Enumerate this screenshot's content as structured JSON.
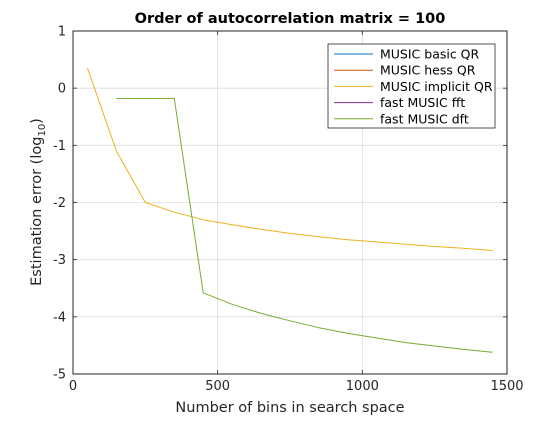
{
  "chart_data": {
    "type": "line",
    "title": "Order of autocorrelation matrix = 100",
    "xlabel": "Number of bins in search space",
    "ylabel_main": "Estimation error (log",
    "ylabel_sub": "10",
    "ylabel_tail": ")",
    "xlim": [
      0,
      1500
    ],
    "ylim": [
      -5,
      1
    ],
    "xticks": [
      0,
      500,
      1000,
      1500
    ],
    "yticks": [
      -5,
      -4,
      -3,
      -2,
      -1,
      0,
      1
    ],
    "grid": true,
    "legend_position": "top-right",
    "series": [
      {
        "name": "MUSIC basic QR",
        "color": "#0072BD",
        "x": [],
        "y": []
      },
      {
        "name": "MUSIC hess QR",
        "color": "#D95319",
        "x": [],
        "y": []
      },
      {
        "name": "MUSIC implicit QR",
        "color": "#EDB120",
        "x": [
          50,
          150,
          250,
          350,
          450,
          550,
          650,
          750,
          850,
          950,
          1050,
          1150,
          1250,
          1350,
          1450
        ],
        "y": [
          0.35,
          -1.1,
          -2.0,
          -2.17,
          -2.3,
          -2.39,
          -2.47,
          -2.54,
          -2.6,
          -2.65,
          -2.69,
          -2.73,
          -2.77,
          -2.8,
          -2.84
        ]
      },
      {
        "name": "fast MUSIC fft",
        "color": "#7E2F8E",
        "x": [],
        "y": []
      },
      {
        "name": "fast MUSIC dft",
        "color": "#77AC30",
        "x": [
          150,
          250,
          350,
          450,
          550,
          650,
          750,
          850,
          950,
          1050,
          1150,
          1250,
          1350,
          1450
        ],
        "y": [
          -0.18,
          -0.18,
          -0.18,
          -3.58,
          -3.78,
          -3.94,
          -4.07,
          -4.19,
          -4.29,
          -4.37,
          -4.45,
          -4.51,
          -4.57,
          -4.62
        ]
      }
    ]
  }
}
